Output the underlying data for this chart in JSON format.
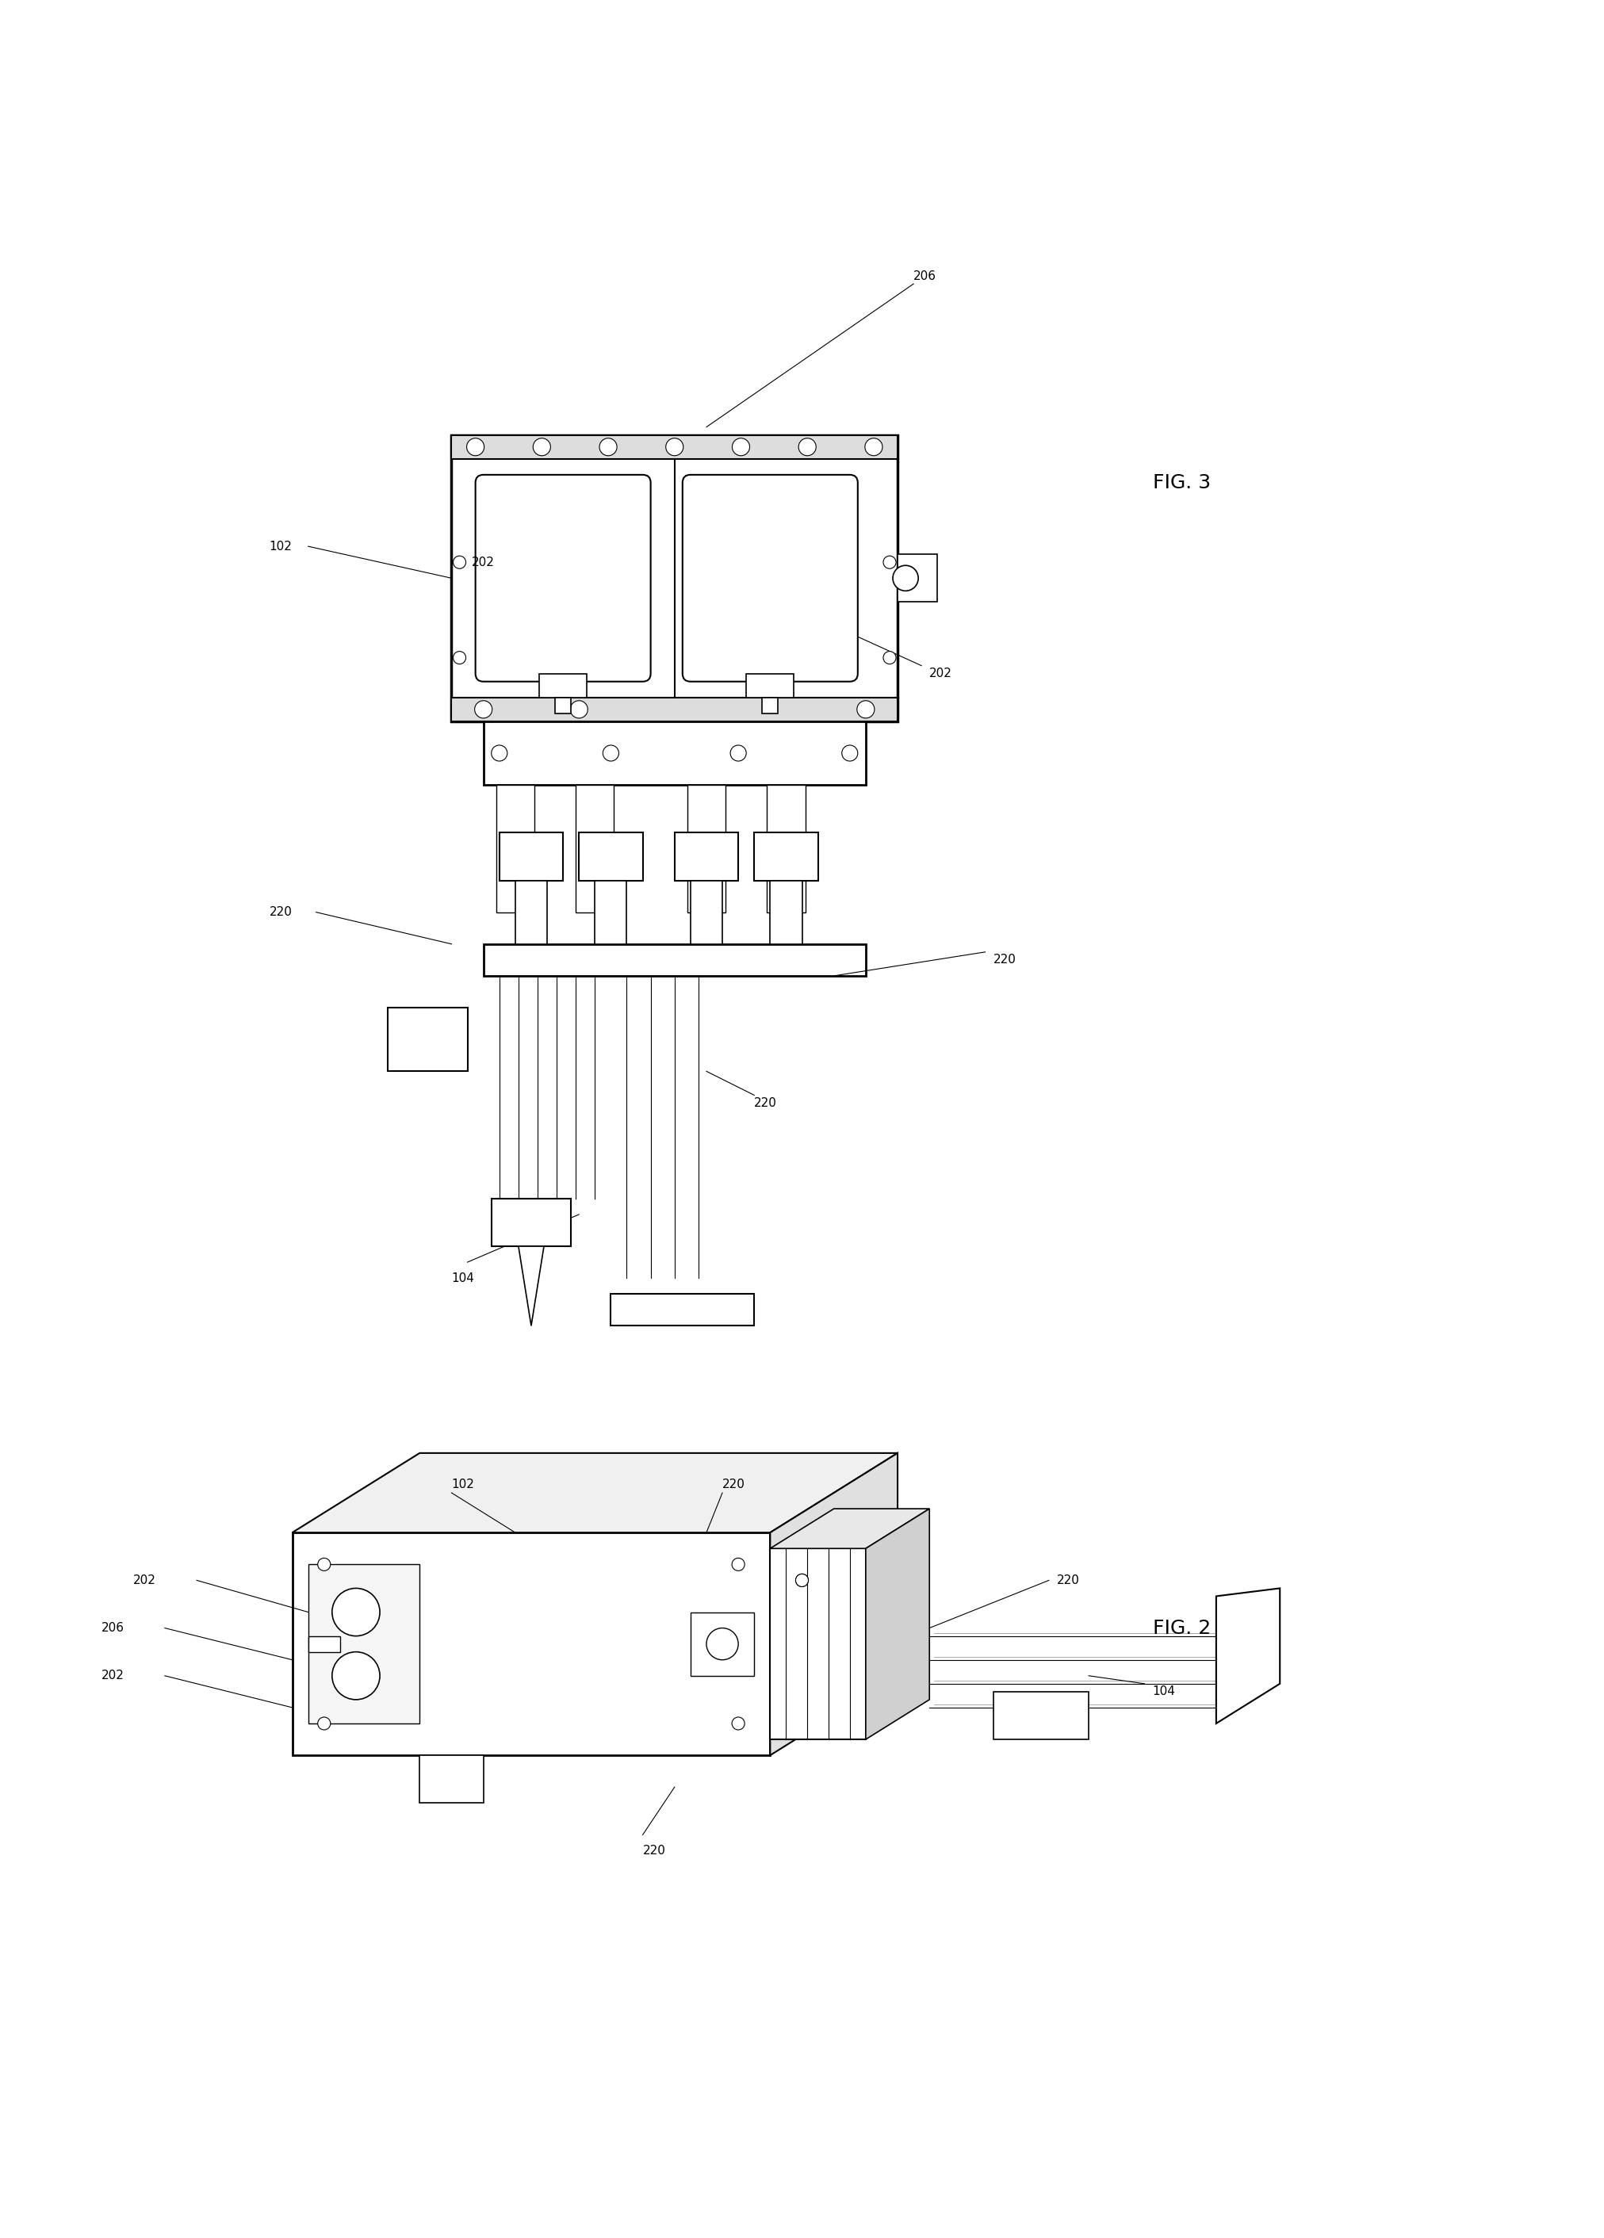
{
  "fig_width": 20.23,
  "fig_height": 28.23,
  "bg_color": "#ffffff",
  "line_color": "#000000",
  "line_width": 1.5,
  "fig3_label": "FIG. 3",
  "fig2_label": "FIG. 2",
  "labels": {
    "206_fig3": "206",
    "102_fig3": "102",
    "202a_fig3": "202",
    "202b_fig3": "202",
    "220a_fig3": "220",
    "220b_fig3": "220",
    "220c_fig3": "220",
    "104_fig3": "104",
    "102_fig2": "102",
    "202_fig2": "202",
    "206_fig2": "206",
    "202b_fig2": "202",
    "220a_fig2": "220",
    "220b_fig2": "220",
    "220c_fig2": "220",
    "104_fig2": "104"
  }
}
